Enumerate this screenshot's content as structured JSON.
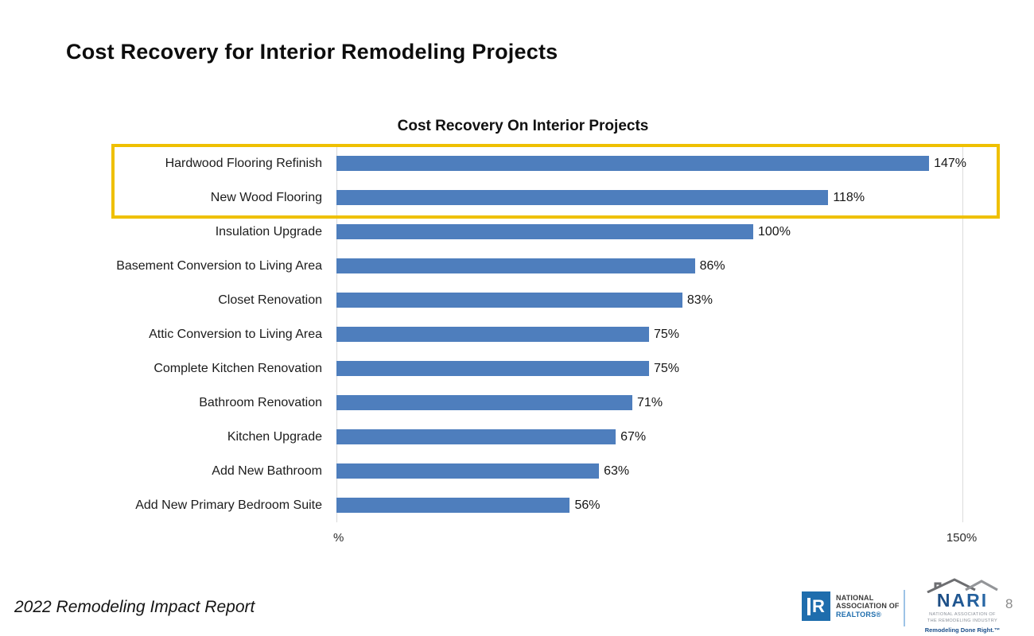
{
  "slide": {
    "title": "Cost Recovery for Interior Remodeling Projects",
    "footer_text": "2022 Remodeling Impact Report",
    "page_number": "8"
  },
  "chart_data": {
    "type": "bar",
    "orientation": "horizontal",
    "title": "Cost Recovery On Interior Projects",
    "categories": [
      "Hardwood Flooring Refinish",
      "New Wood Flooring",
      "Insulation Upgrade",
      "Basement Conversion to Living Area",
      "Closet Renovation",
      "Attic Conversion to Living Area",
      "Complete Kitchen Renovation",
      "Bathroom Renovation",
      "Kitchen Upgrade",
      "Add New Bathroom",
      "Add New Primary Bedroom Suite"
    ],
    "values": [
      147,
      118,
      100,
      86,
      83,
      75,
      75,
      71,
      67,
      63,
      56
    ],
    "value_labels": [
      "147%",
      "118%",
      "100%",
      "86%",
      "83%",
      "75%",
      "75%",
      "71%",
      "67%",
      "63%",
      "56%"
    ],
    "xlim": [
      0,
      150
    ],
    "x_axis_labels": {
      "left": "%",
      "right": "150%"
    },
    "bar_color": "#4e7ebd",
    "gridline_color": "#dcdcdc",
    "grid": "single vertical gridline at 150%",
    "legend": "none",
    "highlight": {
      "row_indices": [
        0,
        1
      ],
      "rows": [
        "Hardwood Flooring Refinish",
        "New Wood Flooring"
      ],
      "box_color": "#efc000"
    }
  },
  "footer": {
    "nar_logo": {
      "text_lines": [
        "NATIONAL",
        "ASSOCIATION OF",
        "REALTORS®"
      ],
      "mark_letter": "R",
      "brand_color": "#1e6dad"
    },
    "nari_logo": {
      "name": "NARI",
      "subtext_lines": [
        "NATIONAL ASSOCIATION OF",
        "THE REMODELING INDUSTRY"
      ],
      "tagline": "Remodeling Done Right.™",
      "brand_color": "#1b4f8a"
    }
  }
}
